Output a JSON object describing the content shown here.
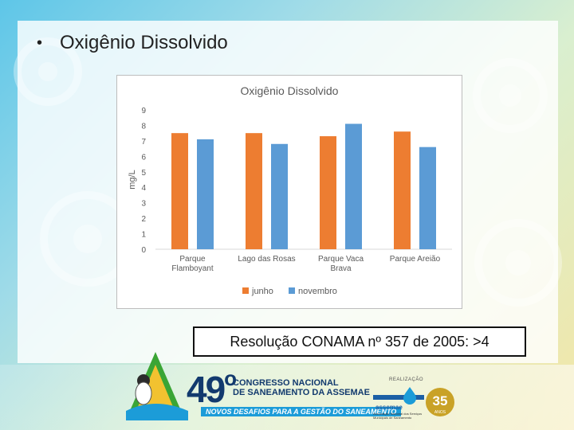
{
  "slide": {
    "bullet_text": "Oxigênio Dissolvido",
    "resolution_text": "Resolução CONAMA nº 357 de 2005: >4"
  },
  "chart_data": {
    "type": "bar",
    "title": "Oxigênio Dissolvido",
    "ylabel": "mg/L",
    "xlabel": "",
    "ylim": [
      0,
      9
    ],
    "yticks": [
      0,
      1,
      2,
      3,
      4,
      5,
      6,
      7,
      8,
      9
    ],
    "categories": [
      [
        "Parque",
        "Flamboyant"
      ],
      [
        "Lago das Rosas"
      ],
      [
        "Parque Vaca",
        "Brava"
      ],
      [
        "Parque Areião"
      ]
    ],
    "series": [
      {
        "name": "junho",
        "color": "#ED7D31",
        "values": [
          7.5,
          7.5,
          7.3,
          7.6
        ]
      },
      {
        "name": "novembro",
        "color": "#5B9BD5",
        "values": [
          7.1,
          6.8,
          8.1,
          6.6
        ]
      }
    ],
    "legend_position": "bottom",
    "grid": false
  },
  "footer": {
    "congress_number": "49",
    "congress_ordinal": "o",
    "congress_line1": "CONGRESSO NACIONAL",
    "congress_line2": "DE SANEAMENTO DA ASSEMAE",
    "congress_tagline": "NOVOS DESAFIOS PARA A GESTÃO DO SANEAMENTO",
    "realizacao_label": "REALIZAÇÃO",
    "assemae_name": "assemae",
    "assemae_subtitle": "Associação Nacional dos Serviços Municipais de Saneamento",
    "anos_number": "35",
    "anos_label": "ANOS"
  }
}
